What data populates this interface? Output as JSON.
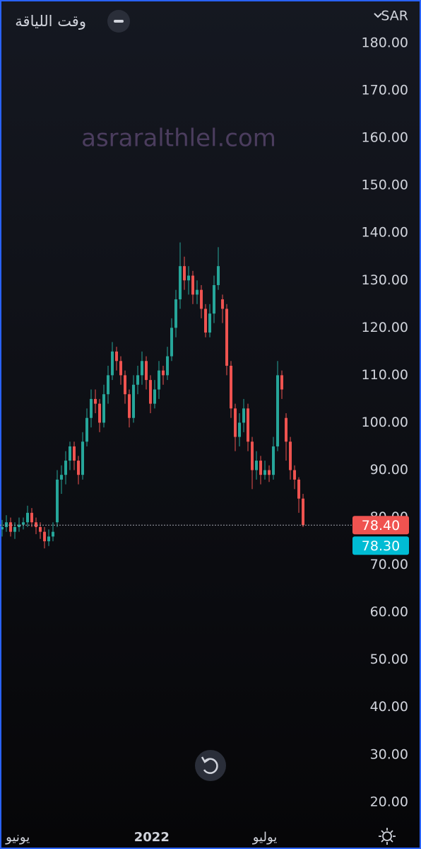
{
  "chart_data": {
    "type": "candlestick",
    "title": "وقت اللياقة",
    "currency": "SAR",
    "watermark": "asraralthlel.com",
    "up_color": "#26a69a",
    "down_color": "#ef5350",
    "ohlc": [
      [
        77.5,
        79.5,
        76,
        78
      ],
      [
        78,
        80.5,
        77,
        79
      ],
      [
        79,
        80,
        76,
        77
      ],
      [
        77,
        79,
        75.5,
        78
      ],
      [
        78,
        80,
        77,
        78.5
      ],
      [
        78.5,
        80,
        77.5,
        79
      ],
      [
        79,
        82.5,
        78,
        81
      ],
      [
        81,
        82,
        78,
        79
      ],
      [
        79,
        80,
        76.5,
        78
      ],
      [
        78,
        79,
        75.5,
        77
      ],
      [
        77,
        78,
        73.5,
        75
      ],
      [
        75,
        77.5,
        74,
        76
      ],
      [
        76,
        79,
        75,
        77
      ],
      [
        79,
        90,
        78,
        88
      ],
      [
        88,
        91,
        85,
        89
      ],
      [
        89,
        94,
        87,
        92
      ],
      [
        92,
        96,
        90,
        95
      ],
      [
        95,
        96,
        90,
        92
      ],
      [
        92,
        93,
        87,
        89
      ],
      [
        89,
        98,
        88,
        96
      ],
      [
        96,
        103,
        95,
        101
      ],
      [
        101,
        107,
        99,
        105
      ],
      [
        105,
        107,
        102,
        104
      ],
      [
        104,
        105,
        98,
        100
      ],
      [
        100,
        108,
        99,
        106
      ],
      [
        106,
        112,
        104,
        110
      ],
      [
        110,
        117,
        109,
        115
      ],
      [
        115,
        116,
        111,
        113
      ],
      [
        113,
        114,
        108,
        110
      ],
      [
        110,
        111,
        104,
        106
      ],
      [
        106,
        107,
        99,
        101
      ],
      [
        101,
        110,
        100,
        108
      ],
      [
        108,
        112,
        106,
        110
      ],
      [
        110,
        115,
        108,
        113
      ],
      [
        113,
        114,
        107,
        109
      ],
      [
        109,
        110,
        102,
        104
      ],
      [
        104,
        109,
        103,
        107
      ],
      [
        107,
        113,
        105,
        111
      ],
      [
        111,
        112,
        108,
        110
      ],
      [
        110,
        116,
        109,
        114
      ],
      [
        114,
        122,
        113,
        120
      ],
      [
        120,
        128,
        118,
        126
      ],
      [
        126,
        138,
        124,
        133
      ],
      [
        133,
        135,
        128,
        130
      ],
      [
        130,
        133,
        127,
        131
      ],
      [
        131,
        132,
        125,
        127
      ],
      [
        127,
        130,
        125,
        128
      ],
      [
        128,
        129,
        122,
        124
      ],
      [
        124,
        125,
        118,
        119
      ],
      [
        119,
        125,
        118,
        123
      ],
      [
        123,
        131,
        121,
        129
      ],
      [
        129,
        137,
        128,
        133
      ],
      [
        126,
        127,
        121,
        124
      ],
      [
        124,
        125,
        110,
        112
      ],
      [
        112,
        113,
        101,
        103
      ],
      [
        103,
        104,
        94,
        97
      ],
      [
        97,
        102,
        95,
        100
      ],
      [
        100,
        105,
        98,
        103
      ],
      [
        103,
        104,
        94,
        96
      ],
      [
        96,
        97,
        86,
        90
      ],
      [
        90,
        94,
        88,
        92
      ],
      [
        92,
        93,
        87,
        89
      ],
      [
        89,
        92,
        88,
        90
      ],
      [
        90,
        91,
        87.5,
        89
      ],
      [
        89,
        97,
        88,
        95
      ],
      [
        95,
        113,
        94,
        110
      ],
      [
        110,
        111,
        105,
        107
      ],
      [
        101,
        102,
        92,
        96
      ],
      [
        96,
        97,
        88,
        90
      ],
      [
        90,
        91,
        86,
        88
      ],
      [
        88,
        88.5,
        81,
        84
      ],
      [
        84,
        85,
        78,
        78.4
      ]
    ],
    "xlim": [
      -0.5,
      82.83
    ],
    "xticks": [
      {
        "value": 3.7,
        "label": "يونيو"
      },
      {
        "value": 35.3,
        "label": "2022",
        "bold": true
      },
      {
        "value": 62,
        "label": "يوليو"
      }
    ],
    "ylim": [
      16.1,
      189.1
    ],
    "yticks": [
      {
        "value": 20,
        "label": "20.00"
      },
      {
        "value": 30,
        "label": "30.00"
      },
      {
        "value": 40,
        "label": "40.00"
      },
      {
        "value": 50,
        "label": "50.00"
      },
      {
        "value": 60,
        "label": "60.00"
      },
      {
        "value": 70,
        "label": "70.00"
      },
      {
        "value": 80,
        "label": "80.00"
      },
      {
        "value": 90,
        "label": "90.00"
      },
      {
        "value": 100,
        "label": "100.00"
      },
      {
        "value": 110,
        "label": "110.00"
      },
      {
        "value": 120,
        "label": "120.00"
      },
      {
        "value": 130,
        "label": "130.00"
      },
      {
        "value": 140,
        "label": "140.00"
      },
      {
        "value": 150,
        "label": "150.00"
      },
      {
        "value": 160,
        "label": "160.00"
      },
      {
        "value": 170,
        "label": "170.00"
      },
      {
        "value": 180,
        "label": "180.00"
      }
    ],
    "price_labels": [
      {
        "value": 78.4,
        "label": "78.40",
        "color": "#f05350"
      },
      {
        "value": 78.3,
        "label": "78.30",
        "color": "#00bcd4"
      }
    ]
  }
}
